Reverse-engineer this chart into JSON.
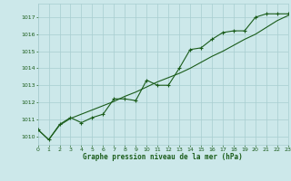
{
  "title": "Graphe pression niveau de la mer (hPa)",
  "bg_color": "#cce8ea",
  "grid_color": "#a8cdd0",
  "line_color": "#1a5c1a",
  "text_color": "#1a5c1a",
  "x_min": 0,
  "x_max": 23,
  "y_min": 1009.5,
  "y_max": 1017.8,
  "y_ticks": [
    1010,
    1011,
    1012,
    1013,
    1014,
    1015,
    1016,
    1017
  ],
  "x_ticks": [
    0,
    1,
    2,
    3,
    4,
    5,
    6,
    7,
    8,
    9,
    10,
    11,
    12,
    13,
    14,
    15,
    16,
    17,
    18,
    19,
    20,
    21,
    22,
    23
  ],
  "series1_x": [
    0,
    1,
    2,
    3,
    4,
    5,
    6,
    7,
    8,
    9,
    10,
    11,
    12,
    13,
    14,
    15,
    16,
    17,
    18,
    19,
    20,
    21,
    22,
    23
  ],
  "series1_y": [
    1010.4,
    1009.8,
    1010.7,
    1011.1,
    1010.8,
    1011.1,
    1011.3,
    1012.2,
    1012.2,
    1012.1,
    1013.3,
    1013.0,
    1013.0,
    1014.0,
    1015.1,
    1015.2,
    1015.7,
    1016.1,
    1016.2,
    1016.2,
    1017.0,
    1017.2,
    1017.2,
    1017.2
  ],
  "series2_x": [
    0,
    1,
    2,
    3,
    4,
    5,
    6,
    7,
    8,
    9,
    10,
    11,
    12,
    13,
    14,
    15,
    16,
    17,
    18,
    19,
    20,
    21,
    22,
    23
  ],
  "series2_y": [
    1010.4,
    1009.8,
    1010.65,
    1011.05,
    1011.3,
    1011.55,
    1011.8,
    1012.05,
    1012.35,
    1012.6,
    1012.9,
    1013.2,
    1013.45,
    1013.7,
    1014.0,
    1014.35,
    1014.7,
    1015.0,
    1015.35,
    1015.7,
    1016.0,
    1016.4,
    1016.8,
    1017.1
  ]
}
